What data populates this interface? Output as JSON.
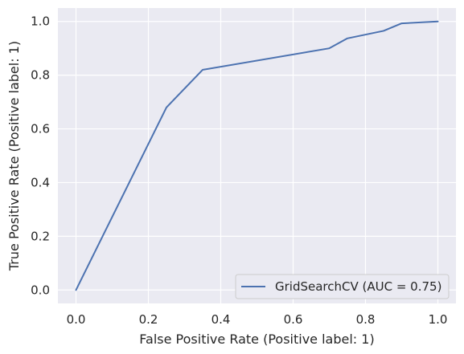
{
  "chart_data": {
    "type": "line",
    "title": "",
    "xlabel": "False Positive Rate (Positive label: 1)",
    "ylabel": "True Positive Rate (Positive label: 1)",
    "xlim": [
      -0.05,
      1.05
    ],
    "ylim": [
      -0.05,
      1.05
    ],
    "xticks": [
      "0.0",
      "0.2",
      "0.4",
      "0.6",
      "0.8",
      "1.0"
    ],
    "yticks": [
      "0.0",
      "0.2",
      "0.4",
      "0.6",
      "0.8",
      "1.0"
    ],
    "grid": true,
    "legend_position": "lower-right",
    "series": [
      {
        "name": "GridSearchCV (AUC = 0.75)",
        "color": "#4c72b0",
        "x": [
          0.0,
          0.25,
          0.35,
          0.7,
          0.75,
          0.85,
          0.9,
          1.0
        ],
        "y": [
          0.0,
          0.68,
          0.82,
          0.9,
          0.937,
          0.965,
          0.993,
          1.0
        ]
      }
    ]
  },
  "colors": {
    "plot_background": "#eaeaf2",
    "grid": "#ffffff"
  }
}
